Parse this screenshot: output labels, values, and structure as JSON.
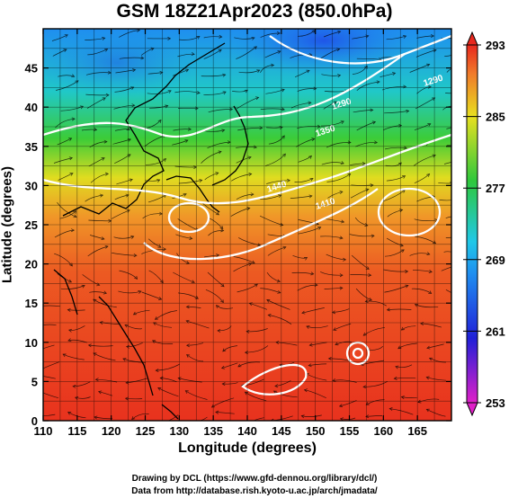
{
  "chart_data": {
    "type": "heatmap",
    "title": "GSM 18Z21Apr2023 (850.0hPa)",
    "xlabel": "Longitude (degrees)",
    "ylabel": "Latitude  (degrees)",
    "xlim": [
      110,
      170
    ],
    "ylim": [
      0,
      50
    ],
    "xticks": [
      "110",
      "115",
      "120",
      "125",
      "130",
      "135",
      "140",
      "145",
      "150",
      "155",
      "160",
      "165"
    ],
    "yticks": [
      "0",
      "5",
      "10",
      "15",
      "20",
      "25",
      "30",
      "35",
      "40",
      "45"
    ],
    "colorbar": {
      "min": 253,
      "max": 293,
      "ticks": [
        "253",
        "261",
        "269",
        "277",
        "285",
        "293"
      ]
    },
    "contour_labels": [
      "1290",
      "1290",
      "1440",
      "1410",
      "1350"
    ]
  },
  "credits": {
    "line1": "Drawing by DCL (https://www.gfd-dennou.org/library/dcl/)",
    "line2": "Data from http://database.rish.kyoto-u.ac.jp/arch/jmadata/"
  },
  "colors": {
    "warm": "#e8372a",
    "orange": "#f07a2a",
    "yellow": "#e8e020",
    "green": "#2ec83c",
    "cyan": "#20c8e8",
    "blue": "#1f6ee8"
  }
}
